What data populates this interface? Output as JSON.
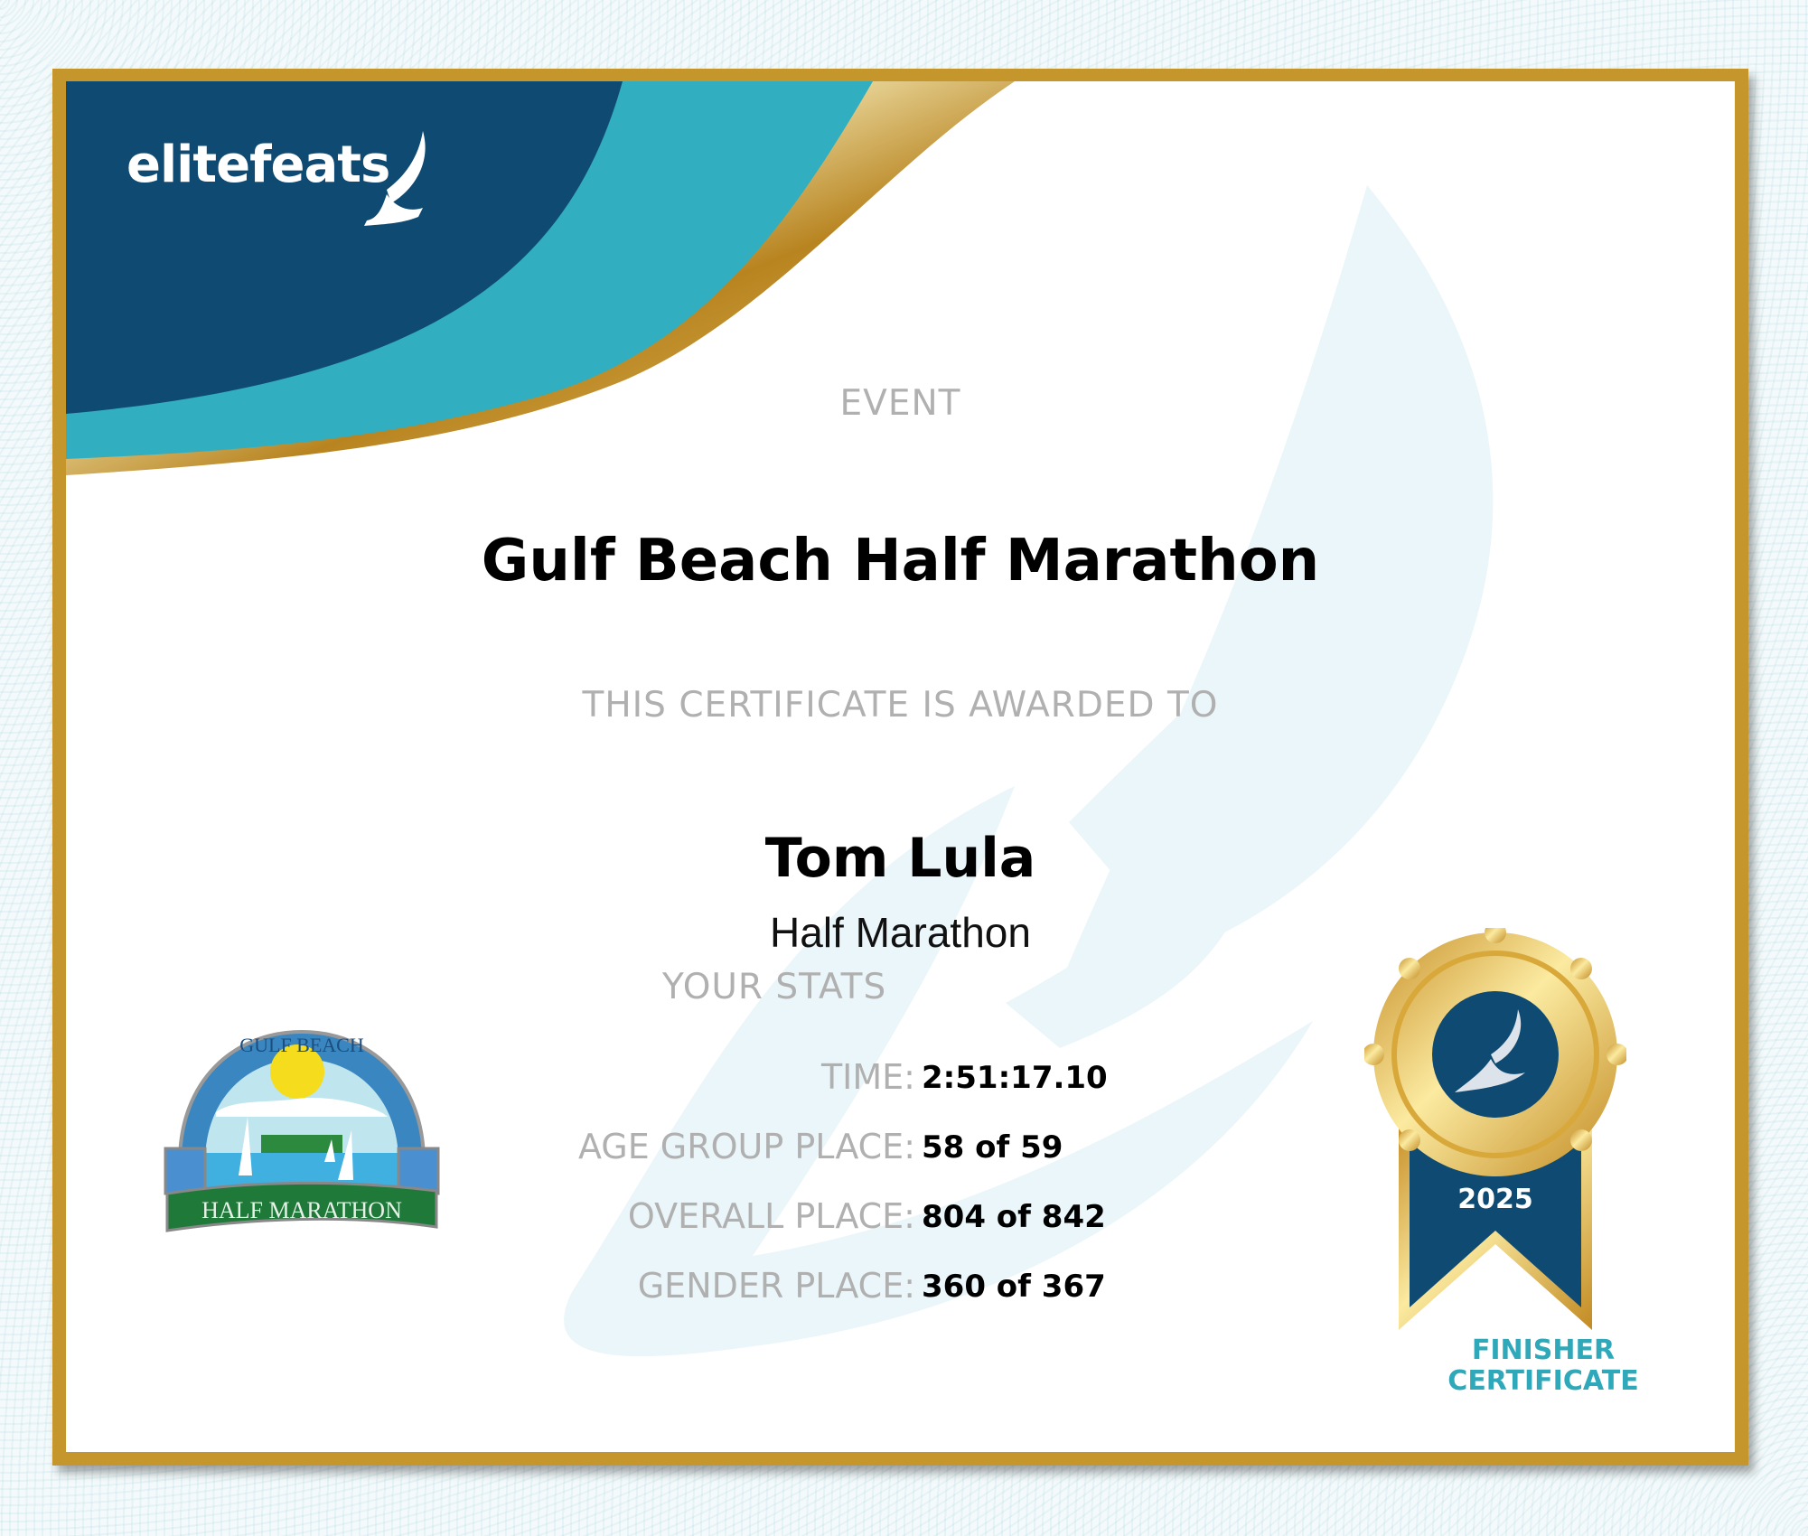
{
  "brand": {
    "logo_text": "elitefeats",
    "colors": {
      "navy": "#0f4a72",
      "teal": "#31aebf",
      "gold": "#c4962c"
    }
  },
  "certificate": {
    "event_label": "EVENT",
    "event_name": "Gulf Beach Half Marathon",
    "awarded_label": "THIS CERTIFICATE IS AWARDED TO",
    "recipient": "Tom Lula",
    "distance": "Half Marathon",
    "stats_label": "YOUR STATS",
    "stats": [
      {
        "label": "TIME:",
        "value": "2:51:17.10"
      },
      {
        "label": "AGE GROUP PLACE:",
        "value": "58 of 59"
      },
      {
        "label": "OVERALL PLACE:",
        "value": "804 of 842"
      },
      {
        "label": "GENDER PLACE:",
        "value": "360 of 367"
      }
    ]
  },
  "race_logo": {
    "top_text": "GULF BEACH",
    "bottom_text": "HALF MARATHON"
  },
  "badge": {
    "year": "2025",
    "line1": "FINISHER",
    "line2": "CERTIFICATE",
    "icon": "winged-foot-icon"
  }
}
